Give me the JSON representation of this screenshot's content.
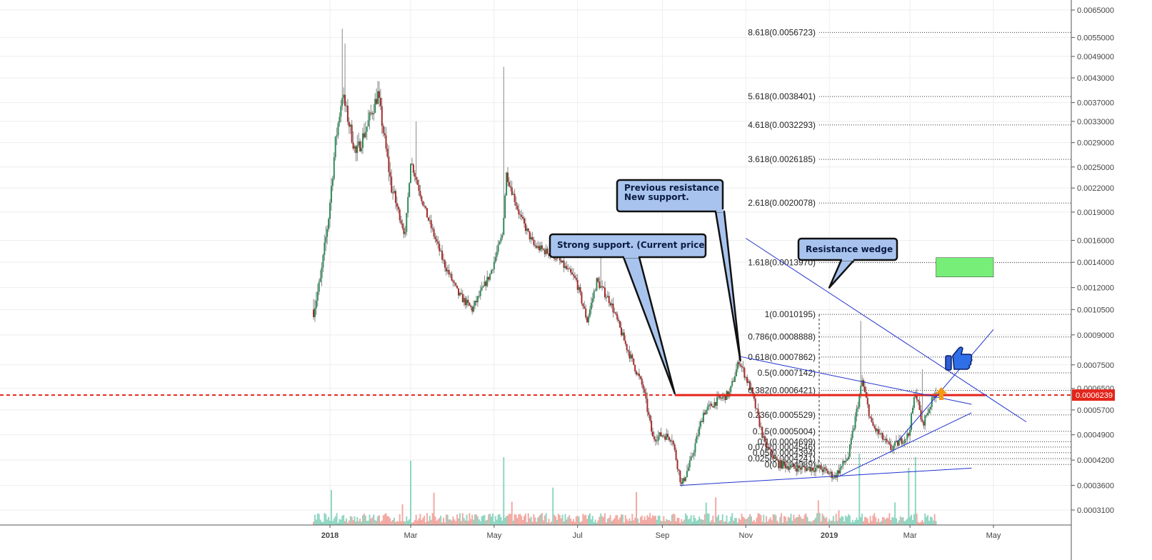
{
  "chart_data": {
    "type": "candlestick",
    "y_axis": {
      "scale": "log",
      "ticks": [
        "0.0065000",
        "0.0055000",
        "0.0049000",
        "0.0043000",
        "0.0037000",
        "0.0033000",
        "0.0029000",
        "0.0025000",
        "0.0022000",
        "0.0019000",
        "0.0016000",
        "0.0014000",
        "0.0012000",
        "0.0010500",
        "0.0009000",
        "0.0007500",
        "0.0006500",
        "0.0005700",
        "0.0004900",
        "0.0004200",
        "0.0003600",
        "0.0003100"
      ],
      "tick_values": [
        0.0065,
        0.0055,
        0.0049,
        0.0043,
        0.0037,
        0.0033,
        0.0029,
        0.0025,
        0.0022,
        0.0019,
        0.0016,
        0.0014,
        0.0012,
        0.00105,
        0.0009,
        0.00075,
        0.00065,
        0.00057,
        0.00049,
        0.00042,
        0.00036,
        0.00031
      ],
      "range": [
        0.00027,
        0.0067
      ]
    },
    "x_axis": {
      "ticks": [
        {
          "label": "2018",
          "date": "2018-01-01",
          "bold": true
        },
        {
          "label": "Mar",
          "date": "2018-03-01",
          "bold": false
        },
        {
          "label": "May",
          "date": "2018-05-01",
          "bold": false
        },
        {
          "label": "Jul",
          "date": "2018-07-01",
          "bold": false
        },
        {
          "label": "Sep",
          "date": "2018-09-01",
          "bold": false
        },
        {
          "label": "Nov",
          "date": "2018-11-01",
          "bold": false
        },
        {
          "label": "2019",
          "date": "2019-01-01",
          "bold": true
        },
        {
          "label": "Mar",
          "date": "2019-03-01",
          "bold": false
        },
        {
          "label": "May",
          "date": "2019-05-01",
          "bold": false
        }
      ],
      "range": [
        "2017-08-28",
        "2019-06-30"
      ]
    },
    "grid": true,
    "up_color": "#2e8b57",
    "down_color": "#a52a2a",
    "wick_color": "#888888",
    "price_key": [
      {
        "date": "2017-12-20",
        "price": 0.00105
      },
      {
        "date": "2017-12-25",
        "price": 0.00125
      },
      {
        "date": "2017-12-31",
        "price": 0.00185
      },
      {
        "date": "2018-01-05",
        "price": 0.0029
      },
      {
        "date": "2018-01-10",
        "price": 0.0039
      },
      {
        "date": "2018-01-20",
        "price": 0.0027
      },
      {
        "date": "2018-01-28",
        "price": 0.0032
      },
      {
        "date": "2018-02-05",
        "price": 0.0039
      },
      {
        "date": "2018-02-15",
        "price": 0.0022
      },
      {
        "date": "2018-02-25",
        "price": 0.00165
      },
      {
        "date": "2018-03-01",
        "price": 0.0026
      },
      {
        "date": "2018-03-12",
        "price": 0.0019
      },
      {
        "date": "2018-03-25",
        "price": 0.0014
      },
      {
        "date": "2018-04-05",
        "price": 0.00115
      },
      {
        "date": "2018-04-15",
        "price": 0.00105
      },
      {
        "date": "2018-04-28",
        "price": 0.0013
      },
      {
        "date": "2018-05-07",
        "price": 0.00165
      },
      {
        "date": "2018-05-10",
        "price": 0.0024
      },
      {
        "date": "2018-05-20",
        "price": 0.00185
      },
      {
        "date": "2018-05-30",
        "price": 0.00155
      },
      {
        "date": "2018-06-15",
        "price": 0.00145
      },
      {
        "date": "2018-06-30",
        "price": 0.00125
      },
      {
        "date": "2018-07-08",
        "price": 0.00098
      },
      {
        "date": "2018-07-15",
        "price": 0.00125
      },
      {
        "date": "2018-07-25",
        "price": 0.0011
      },
      {
        "date": "2018-08-05",
        "price": 0.00085
      },
      {
        "date": "2018-08-18",
        "price": 0.00065
      },
      {
        "date": "2018-08-25",
        "price": 0.00048
      },
      {
        "date": "2018-09-01",
        "price": 0.00049
      },
      {
        "date": "2018-09-08",
        "price": 0.00048
      },
      {
        "date": "2018-09-15",
        "price": 0.00036
      },
      {
        "date": "2018-09-22",
        "price": 0.00042
      },
      {
        "date": "2018-10-01",
        "price": 0.00056
      },
      {
        "date": "2018-10-10",
        "price": 0.0006
      },
      {
        "date": "2018-10-20",
        "price": 0.00063
      },
      {
        "date": "2018-10-27",
        "price": 0.00077
      },
      {
        "date": "2018-11-05",
        "price": 0.00064
      },
      {
        "date": "2018-11-15",
        "price": 0.00046
      },
      {
        "date": "2018-11-25",
        "price": 0.00041
      },
      {
        "date": "2018-12-10",
        "price": 0.0004
      },
      {
        "date": "2018-12-25",
        "price": 0.0004
      },
      {
        "date": "2019-01-05",
        "price": 0.00038
      },
      {
        "date": "2019-01-15",
        "price": 0.00043
      },
      {
        "date": "2019-01-25",
        "price": 0.00068
      },
      {
        "date": "2019-02-01",
        "price": 0.00052
      },
      {
        "date": "2019-02-15",
        "price": 0.00045
      },
      {
        "date": "2019-02-28",
        "price": 0.00049
      },
      {
        "date": "2019-03-05",
        "price": 0.00064
      },
      {
        "date": "2019-03-10",
        "price": 0.00052
      },
      {
        "date": "2019-03-20",
        "price": 0.00064
      }
    ],
    "current_price": {
      "value": 0.0006239,
      "label": "0.0006239",
      "color": "#e3251b"
    },
    "fib_levels": [
      {
        "label": "8.618(0.0056723)",
        "value": 0.0056723
      },
      {
        "label": "5.618(0.0038401)",
        "value": 0.0038401
      },
      {
        "label": "4.618(0.0032293)",
        "value": 0.0032293
      },
      {
        "label": "3.618(0.0026185)",
        "value": 0.0026185
      },
      {
        "label": "2.618(0.0020078)",
        "value": 0.0020078
      },
      {
        "label": "1.618(0.0013970)",
        "value": 0.001397
      },
      {
        "label": "1(0.0010195)",
        "value": 0.0010195
      },
      {
        "label": "0.786(0.0008888)",
        "value": 0.0008888
      },
      {
        "label": "0.618(0.0007862)",
        "value": 0.0007862
      },
      {
        "label": "0.5(0.0007142)",
        "value": 0.0007142
      },
      {
        "label": "0.382(0.0006421)",
        "value": 0.0006421
      },
      {
        "label": "0.236(0.0005529)",
        "value": 0.0005529
      },
      {
        "label": "0.15(0.0005004)",
        "value": 0.0005004
      },
      {
        "label": "0.1(0.0004699)",
        "value": 0.0004699
      },
      {
        "label": "0.075(0.0004546)",
        "value": 0.0004546
      },
      {
        "label": "0.05(0.0004394)",
        "value": 0.0004394
      },
      {
        "label": "0.025(0.0004241)",
        "value": 0.0004241
      },
      {
        "label": "0(0.0004089)",
        "value": 0.0004089
      }
    ],
    "annotations": [
      {
        "text": "Strong support. (Current price",
        "lines": [
          "Strong support. (Current price"
        ],
        "pointer": {
          "date": "2018-09-10",
          "price": 0.00063
        }
      },
      {
        "text": "Previous resistance New support.",
        "lines": [
          "Previous resistance",
          "New support."
        ],
        "pointer": {
          "date": "2018-10-28",
          "price": 0.00077
        }
      },
      {
        "text": "Resistance wedge",
        "lines": [
          "Resistance wedge"
        ],
        "pointer": {
          "date": "2019-01-01",
          "price": 0.0012
        }
      }
    ],
    "trendlines": [
      {
        "name": "support",
        "from": {
          "date": "2018-09-14",
          "price": 0.00036
        },
        "to": {
          "date": "2019-04-15",
          "price": 0.0004
        },
        "color": "#2233cc"
      },
      {
        "name": "descending resistance",
        "from": {
          "date": "2018-11-01",
          "price": 0.00162
        },
        "to": {
          "date": "2019-05-25",
          "price": 0.00053
        },
        "color": "#2233cc"
      },
      {
        "name": "upper wedge",
        "from": {
          "date": "2018-10-27",
          "price": 0.00079
        },
        "to": {
          "date": "2019-04-15",
          "price": 0.00059
        },
        "color": "#2233cc"
      },
      {
        "name": "lower wedge",
        "from": {
          "date": "2019-01-08",
          "price": 0.00038
        },
        "to": {
          "date": "2019-04-15",
          "price": 0.00056
        },
        "color": "#2233cc"
      },
      {
        "name": "breakout",
        "from": {
          "date": "2019-02-20",
          "price": 0.00047
        },
        "to": {
          "date": "2019-05-01",
          "price": 0.00093
        },
        "color": "#2233cc"
      }
    ],
    "target_box": {
      "from_date": "2019-03-20",
      "to_date": "2019-05-01",
      "top": 0.00144,
      "bottom": 0.00128,
      "color": "#77ee77"
    },
    "icons": [
      "thumbs-up-icon",
      "up-arrow-icon"
    ]
  }
}
